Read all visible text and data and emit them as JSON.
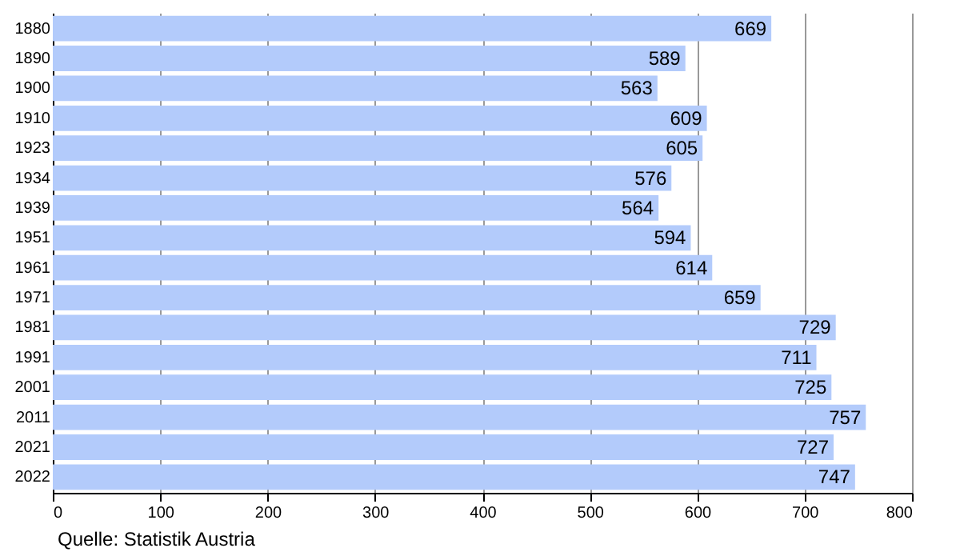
{
  "chart_data": {
    "type": "bar",
    "orientation": "horizontal",
    "categories": [
      "1880",
      "1890",
      "1900",
      "1910",
      "1923",
      "1934",
      "1939",
      "1951",
      "1961",
      "1971",
      "1981",
      "1991",
      "2001",
      "2011",
      "2021",
      "2022"
    ],
    "values": [
      669,
      589,
      563,
      609,
      605,
      576,
      564,
      594,
      614,
      659,
      729,
      711,
      725,
      757,
      727,
      747
    ],
    "color": "#b3cbfb",
    "xlim": [
      0,
      800
    ],
    "xticks": [
      0,
      100,
      200,
      300,
      400,
      500,
      600,
      700,
      800
    ],
    "grid": "x",
    "data_labels": true,
    "annotations": [
      "Quelle: Statistik Austria"
    ]
  }
}
